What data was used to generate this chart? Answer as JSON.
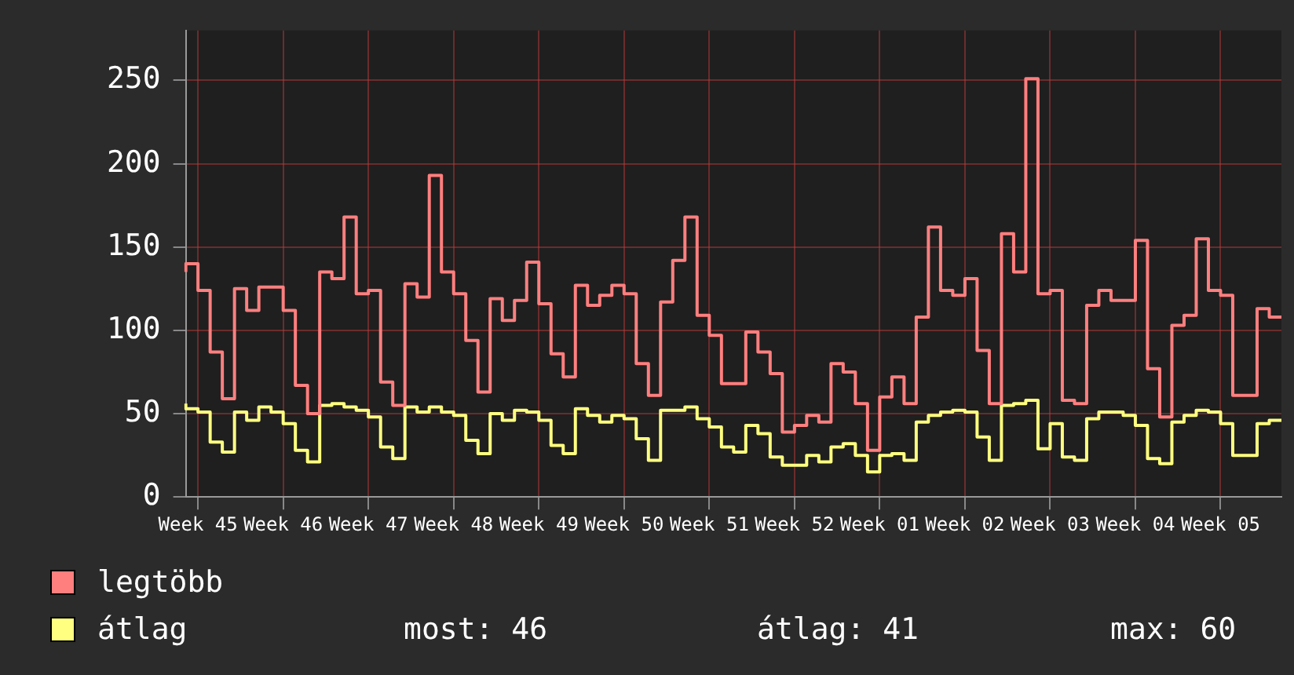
{
  "chart_data": {
    "type": "step",
    "ylim": [
      0,
      280
    ],
    "yticks": [
      0,
      50,
      100,
      150,
      200,
      250
    ],
    "categories": [
      null,
      "Week 45",
      null,
      null,
      null,
      null,
      null,
      null,
      "Week 46",
      null,
      null,
      null,
      null,
      null,
      null,
      "Week 47",
      null,
      null,
      null,
      null,
      null,
      null,
      "Week 48",
      null,
      null,
      null,
      null,
      null,
      null,
      "Week 49",
      null,
      null,
      null,
      null,
      null,
      null,
      "Week 50",
      null,
      null,
      null,
      null,
      null,
      null,
      "Week 51",
      null,
      null,
      null,
      null,
      null,
      null,
      "Week 52",
      null,
      null,
      null,
      null,
      null,
      null,
      "Week 01",
      null,
      null,
      null,
      null,
      null,
      null,
      "Week 02",
      null,
      null,
      null,
      null,
      null,
      null,
      "Week 03",
      null,
      null,
      null,
      null,
      null,
      null,
      "Week 04",
      null,
      null,
      null,
      null,
      null,
      null,
      "Week 05",
      null,
      null,
      null,
      null,
      null
    ],
    "series": [
      {
        "name": "legtöbb",
        "color": "#ff7f7f",
        "values": [
          135,
          140,
          124,
          87,
          59,
          125,
          112,
          126,
          126,
          112,
          67,
          50,
          135,
          131,
          168,
          122,
          124,
          69,
          55,
          128,
          120,
          193,
          135,
          122,
          94,
          63,
          119,
          106,
          118,
          141,
          116,
          86,
          72,
          127,
          115,
          121,
          127,
          122,
          80,
          61,
          117,
          142,
          168,
          109,
          97,
          68,
          68,
          99,
          87,
          74,
          39,
          43,
          49,
          45,
          80,
          75,
          56,
          28,
          60,
          72,
          56,
          108,
          162,
          124,
          121,
          131,
          88,
          56,
          158,
          135,
          251,
          122,
          124,
          58,
          56,
          115,
          124,
          118,
          118,
          154,
          77,
          48,
          103,
          109,
          155,
          124,
          121,
          61,
          61,
          113,
          108
        ]
      },
      {
        "name": "átlag",
        "color": "#ffff80",
        "values": [
          56,
          53,
          51,
          33,
          27,
          51,
          46,
          54,
          51,
          44,
          28,
          21,
          55,
          56,
          54,
          52,
          48,
          30,
          23,
          54,
          51,
          54,
          51,
          49,
          34,
          26,
          50,
          46,
          52,
          51,
          46,
          31,
          26,
          53,
          49,
          45,
          49,
          47,
          35,
          22,
          52,
          52,
          54,
          47,
          42,
          30,
          27,
          43,
          38,
          24,
          19,
          19,
          25,
          21,
          30,
          32,
          25,
          15,
          25,
          26,
          22,
          45,
          49,
          51,
          52,
          51,
          36,
          22,
          55,
          56,
          58,
          29,
          44,
          24,
          22,
          47,
          51,
          51,
          49,
          43,
          23,
          20,
          45,
          49,
          52,
          51,
          44,
          25,
          25,
          44,
          46
        ]
      }
    ],
    "annotations": [
      "most: 46",
      "átlag: 41",
      "max: 60"
    ],
    "grid": true,
    "legend": "bottom left",
    "line_style": "solid",
    "marker": "none"
  }
}
